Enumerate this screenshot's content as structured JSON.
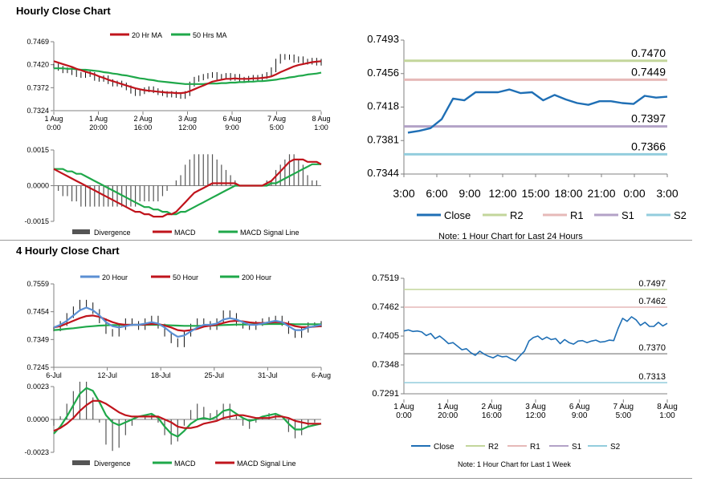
{
  "sections": [
    {
      "title": "Hourly Close Chart"
    },
    {
      "title": "4 Hourly Close Chart"
    }
  ],
  "colors": {
    "ma_red": "#c0141c",
    "ma_green": "#1fa84a",
    "hist": "#555555",
    "close": "#1f6fb5",
    "r2": "#c3d69b",
    "r1": "#e6b9b8",
    "s1": "#b3a2c7",
    "s2": "#93cddd",
    "axis": "#808080"
  },
  "chart_data": [
    {
      "id": "hourly_price_ma",
      "type": "line",
      "legend": [
        "20 Hr MA",
        "50 Hrs MA"
      ],
      "legend_placement": "top",
      "ylim": [
        0.7324,
        0.7469
      ],
      "yticks": [
        "0.7469",
        "0.7420",
        "0.7372",
        "0.7324"
      ],
      "xticks": [
        [
          "1 Aug",
          "0:00"
        ],
        [
          "1 Aug",
          "20:00"
        ],
        [
          "2 Aug",
          "16:00"
        ],
        [
          "3 Aug",
          "12:00"
        ],
        [
          "6 Aug",
          "9:00"
        ],
        [
          "7 Aug",
          "5:00"
        ],
        [
          "8 Aug",
          "1:00"
        ]
      ],
      "close": [
        0.7418,
        0.7413,
        0.7408,
        0.741,
        0.7404,
        0.74,
        0.7398,
        0.7402,
        0.74,
        0.7392,
        0.739,
        0.7393,
        0.7385,
        0.738,
        0.7382,
        0.7378,
        0.7372,
        0.7365,
        0.736,
        0.7364,
        0.7368,
        0.737,
        0.7366,
        0.7362,
        0.736,
        0.7357,
        0.736,
        0.7356,
        0.7354,
        0.736,
        0.738,
        0.739,
        0.7393,
        0.7396,
        0.7398,
        0.74,
        0.7394,
        0.7396,
        0.7398,
        0.7392,
        0.7396,
        0.739,
        0.7388,
        0.7392,
        0.7394,
        0.7392,
        0.7396,
        0.74,
        0.741,
        0.7428,
        0.7438,
        0.7436,
        0.7437,
        0.743,
        0.7433,
        0.7428,
        0.7426,
        0.743,
        0.7424,
        0.7428
      ],
      "series": [
        {
          "name": "20 Hr MA",
          "values": [
            0.7428,
            0.7425,
            0.7422,
            0.7419,
            0.7416,
            0.7412,
            0.7409,
            0.7406,
            0.7403,
            0.74,
            0.7396,
            0.7393,
            0.7389,
            0.7386,
            0.7383,
            0.738,
            0.7377,
            0.7374,
            0.7371,
            0.7369,
            0.7367,
            0.7366,
            0.7365,
            0.7364,
            0.7363,
            0.7362,
            0.7362,
            0.7361,
            0.7361,
            0.7362,
            0.7365,
            0.7369,
            0.7373,
            0.7377,
            0.7381,
            0.7385,
            0.7387,
            0.7389,
            0.7391,
            0.7391,
            0.7392,
            0.7391,
            0.7391,
            0.7391,
            0.7392,
            0.7392,
            0.7393,
            0.7394,
            0.7396,
            0.74,
            0.7405,
            0.7409,
            0.7413,
            0.7417,
            0.742,
            0.7422,
            0.7424,
            0.7426,
            0.7427,
            0.7428
          ]
        },
        {
          "name": "50 Hrs MA",
          "values": [
            0.7413,
            0.7413,
            0.7413,
            0.7412,
            0.7412,
            0.7411,
            0.741,
            0.741,
            0.7409,
            0.7408,
            0.7407,
            0.7405,
            0.7404,
            0.7402,
            0.7401,
            0.7399,
            0.7398,
            0.7396,
            0.7394,
            0.7392,
            0.7391,
            0.7389,
            0.7388,
            0.7386,
            0.7385,
            0.7384,
            0.7383,
            0.7382,
            0.7381,
            0.738,
            0.738,
            0.738,
            0.738,
            0.738,
            0.7381,
            0.7381,
            0.7381,
            0.7382,
            0.7382,
            0.7383,
            0.7383,
            0.7384,
            0.7384,
            0.7385,
            0.7385,
            0.7386,
            0.7386,
            0.7387,
            0.7388,
            0.7389,
            0.7391,
            0.7392,
            0.7394,
            0.7395,
            0.7397,
            0.7398,
            0.74,
            0.7401,
            0.7402,
            0.7404
          ]
        }
      ]
    },
    {
      "id": "hourly_macd",
      "type": "line",
      "legend": [
        "Divergence",
        "MACD",
        "MACD Signal Line"
      ],
      "legend_placement": "bottom",
      "ylim": [
        -0.0015,
        0.0015
      ],
      "yticks": [
        "0.0015",
        "0.0000",
        "-0.0015"
      ],
      "series": [
        {
          "name": "MACD",
          "values": [
            0.0007,
            0.0006,
            0.0005,
            0.0004,
            0.0003,
            0.0002,
            0.0001,
            0.0,
            -0.0001,
            -0.0002,
            -0.0003,
            -0.0004,
            -0.0005,
            -0.0006,
            -0.0007,
            -0.0008,
            -0.0009,
            -0.001,
            -0.0011,
            -0.0011,
            -0.0012,
            -0.0012,
            -0.0013,
            -0.0013,
            -0.0013,
            -0.0012,
            -0.0012,
            -0.0011,
            -0.0009,
            -0.0007,
            -0.0005,
            -0.0003,
            -0.0002,
            -0.0001,
            0.0,
            0.0001,
            0.0001,
            0.0001,
            0.0001,
            0.0001,
            0.0001,
            0.0,
            0.0,
            0.0,
            0.0,
            0.0,
            0.0,
            0.0001,
            0.0002,
            0.0004,
            0.0006,
            0.0008,
            0.001,
            0.0011,
            0.0011,
            0.0011,
            0.001,
            0.001,
            0.001,
            0.0009
          ]
        },
        {
          "name": "MACD Signal Line",
          "values": [
            0.0007,
            0.0007,
            0.0007,
            0.0006,
            0.0006,
            0.0005,
            0.0005,
            0.0004,
            0.0003,
            0.0002,
            0.0001,
            0.0,
            -0.0001,
            -0.0002,
            -0.0003,
            -0.0004,
            -0.0005,
            -0.0006,
            -0.0007,
            -0.0008,
            -0.0009,
            -0.0009,
            -0.001,
            -0.001,
            -0.0011,
            -0.0011,
            -0.0012,
            -0.0012,
            -0.0011,
            -0.0011,
            -0.001,
            -0.0009,
            -0.0008,
            -0.0007,
            -0.0006,
            -0.0005,
            -0.0004,
            -0.0003,
            -0.0002,
            -0.0001,
            0.0,
            0.0,
            0.0,
            0.0,
            0.0,
            0.0,
            0.0,
            0.0,
            0.0001,
            0.0001,
            0.0002,
            0.0003,
            0.0004,
            0.0005,
            0.0006,
            0.0007,
            0.0008,
            0.0009,
            0.0009,
            0.0009
          ]
        }
      ]
    },
    {
      "id": "hourly_close_levels",
      "type": "line",
      "xticks": [
        "3:00",
        "6:00",
        "9:00",
        "12:00",
        "15:00",
        "18:00",
        "21:00",
        "0:00",
        "3:00"
      ],
      "ylim": [
        0.7344,
        0.7493
      ],
      "yticks": [
        "0.7493",
        "0.7456",
        "0.7418",
        "0.7381",
        "0.7344"
      ],
      "legend": [
        "Close",
        "R2",
        "R1",
        "S1",
        "S2"
      ],
      "legend_placement": "bottom",
      "note": "Note: 1 Hour Chart for Last 24 Hours",
      "levels": [
        {
          "name": "R2",
          "value": 0.747,
          "label": "0.7470"
        },
        {
          "name": "R1",
          "value": 0.7449,
          "label": "0.7449"
        },
        {
          "name": "S1",
          "value": 0.7397,
          "label": "0.7397"
        },
        {
          "name": "S2",
          "value": 0.7366,
          "label": "0.7366"
        }
      ],
      "close": [
        0.739,
        0.7392,
        0.7395,
        0.7405,
        0.7428,
        0.7426,
        0.7435,
        0.7435,
        0.7435,
        0.7438,
        0.7434,
        0.7435,
        0.7426,
        0.7432,
        0.7427,
        0.7423,
        0.7421,
        0.7425,
        0.7425,
        0.7423,
        0.7422,
        0.7431,
        0.7429,
        0.743
      ]
    },
    {
      "id": "4hourly_price_ma",
      "type": "line",
      "legend": [
        "20 Hour",
        "50 Hour",
        "200 Hour"
      ],
      "legend_placement": "top",
      "ylim": [
        0.7245,
        0.7559
      ],
      "yticks": [
        "0.7559",
        "0.7454",
        "0.7349",
        "0.7245"
      ],
      "xticks": [
        "6-Jul",
        "12-Jul",
        "18-Jul",
        "25-Jul",
        "31-Jul",
        "6-Aug"
      ],
      "close": [
        0.739,
        0.741,
        0.744,
        0.7465,
        0.749,
        0.748,
        0.7455,
        0.742,
        0.738,
        0.737,
        0.7395,
        0.742,
        0.741,
        0.7395,
        0.742,
        0.743,
        0.74,
        0.737,
        0.7345,
        0.733,
        0.737,
        0.74,
        0.742,
        0.741,
        0.7395,
        0.742,
        0.745,
        0.744,
        0.741,
        0.74,
        0.7395,
        0.741,
        0.742,
        0.7425,
        0.743,
        0.741,
        0.738,
        0.7365,
        0.7385,
        0.7405,
        0.7405,
        0.741
      ],
      "series": [
        {
          "name": "20 Hour",
          "values": [
            0.7395,
            0.7405,
            0.742,
            0.744,
            0.746,
            0.747,
            0.746,
            0.744,
            0.7415,
            0.74,
            0.7395,
            0.74,
            0.7405,
            0.7405,
            0.741,
            0.7415,
            0.741,
            0.7395,
            0.7375,
            0.736,
            0.7365,
            0.738,
            0.7395,
            0.7405,
            0.7405,
            0.741,
            0.7425,
            0.743,
            0.7425,
            0.7415,
            0.7405,
            0.7405,
            0.741,
            0.7415,
            0.742,
            0.7415,
            0.74,
            0.7385,
            0.7385,
            0.7395,
            0.74,
            0.7405
          ]
        },
        {
          "name": "50 Hour",
          "values": [
            0.7395,
            0.74,
            0.741,
            0.742,
            0.743,
            0.7438,
            0.744,
            0.7435,
            0.7425,
            0.7415,
            0.7408,
            0.7405,
            0.7405,
            0.7405,
            0.7406,
            0.7408,
            0.7408,
            0.7402,
            0.7395,
            0.7385,
            0.7382,
            0.7385,
            0.739,
            0.7398,
            0.7402,
            0.7405,
            0.7412,
            0.7418,
            0.742,
            0.7418,
            0.7414,
            0.7412,
            0.7412,
            0.7413,
            0.7415,
            0.7414,
            0.7408,
            0.74,
            0.7396,
            0.7396,
            0.7398,
            0.74
          ]
        },
        {
          "name": "200 Hour",
          "values": [
            0.7385,
            0.7387,
            0.739,
            0.7392,
            0.7395,
            0.7398,
            0.74,
            0.7402,
            0.7403,
            0.7404,
            0.7404,
            0.7405,
            0.7405,
            0.7405,
            0.7405,
            0.7405,
            0.7405,
            0.7404,
            0.7403,
            0.7402,
            0.7401,
            0.7401,
            0.7401,
            0.7402,
            0.7402,
            0.7403,
            0.7404,
            0.7405,
            0.7406,
            0.7406,
            0.7406,
            0.7407,
            0.7407,
            0.7408,
            0.7408,
            0.7408,
            0.7408,
            0.7407,
            0.7407,
            0.7407,
            0.7407,
            0.7407
          ]
        }
      ]
    },
    {
      "id": "4hourly_macd",
      "type": "line",
      "legend": [
        "Divergence",
        "MACD",
        "MACD Signal Line"
      ],
      "legend_placement": "bottom",
      "ylim": [
        -0.0023,
        0.0023
      ],
      "yticks": [
        "0.0023",
        "0.0000",
        "-0.0023"
      ],
      "series": [
        {
          "name": "MACD",
          "values": [
            -0.001,
            -0.0005,
            0.0002,
            0.001,
            0.0018,
            0.0022,
            0.002,
            0.0012,
            0.0003,
            -0.0002,
            -0.0004,
            -0.0002,
            0.0,
            0.0002,
            0.0003,
            0.0004,
            0.0001,
            -0.0005,
            -0.001,
            -0.0012,
            -0.0008,
            -0.0003,
            0.0,
            0.0001,
            0.0,
            0.0002,
            0.0006,
            0.0007,
            0.0004,
            0.0001,
            -0.0001,
            0.0,
            0.0002,
            0.0003,
            0.0004,
            0.0002,
            -0.0003,
            -0.0007,
            -0.0007,
            -0.0005,
            -0.0004,
            -0.0003
          ]
        },
        {
          "name": "MACD Signal Line",
          "values": [
            -0.0008,
            -0.0006,
            -0.0003,
            0.0001,
            0.0006,
            0.001,
            0.0013,
            0.0013,
            0.0011,
            0.0008,
            0.0005,
            0.0003,
            0.0002,
            0.0002,
            0.0002,
            0.0002,
            0.0002,
            0.0,
            -0.0002,
            -0.0005,
            -0.0006,
            -0.0006,
            -0.0005,
            -0.0003,
            -0.0002,
            -0.0001,
            0.0001,
            0.0002,
            0.0003,
            0.0003,
            0.0002,
            0.0001,
            0.0001,
            0.0001,
            0.0002,
            0.0002,
            0.0001,
            -0.0001,
            -0.0002,
            -0.0003,
            -0.0003,
            -0.0003
          ]
        }
      ]
    },
    {
      "id": "weekly_close_levels",
      "type": "line",
      "xticks": [
        [
          "1 Aug",
          "0:00"
        ],
        [
          "1 Aug",
          "20:00"
        ],
        [
          "2 Aug",
          "16:00"
        ],
        [
          "3 Aug",
          "12:00"
        ],
        [
          "6 Aug",
          "9:00"
        ],
        [
          "7 Aug",
          "5:00"
        ],
        [
          "8 Aug",
          "1:00"
        ]
      ],
      "ylim": [
        0.7291,
        0.7519
      ],
      "yticks": [
        "0.7519",
        "0.7462",
        "0.7405",
        "0.7348",
        "0.7291"
      ],
      "legend": [
        "Close",
        "R2",
        "R1",
        "S1",
        "S2"
      ],
      "legend_placement": "bottom",
      "note": "Note: 1 Hour Chart for Last 1 Week",
      "levels": [
        {
          "name": "R2",
          "value": 0.7497,
          "label": "0.7497"
        },
        {
          "name": "R1",
          "value": 0.7462,
          "label": "0.7462"
        },
        {
          "name": "S1",
          "value": 0.737,
          "label": "0.7370"
        },
        {
          "name": "S2",
          "value": 0.7313,
          "label": "0.7313"
        }
      ],
      "close": [
        0.7415,
        0.7417,
        0.7414,
        0.7415,
        0.7413,
        0.7406,
        0.741,
        0.74,
        0.7405,
        0.7398,
        0.739,
        0.7392,
        0.7385,
        0.7378,
        0.738,
        0.7372,
        0.7367,
        0.7375,
        0.7369,
        0.7365,
        0.7362,
        0.7367,
        0.7364,
        0.7365,
        0.736,
        0.7356,
        0.7366,
        0.7375,
        0.7395,
        0.7402,
        0.7405,
        0.7398,
        0.7403,
        0.7398,
        0.74,
        0.739,
        0.7398,
        0.7392,
        0.7389,
        0.7395,
        0.7396,
        0.7392,
        0.7395,
        0.7397,
        0.7393,
        0.7394,
        0.7397,
        0.7396,
        0.742,
        0.744,
        0.7434,
        0.7443,
        0.7437,
        0.7426,
        0.7432,
        0.7424,
        0.7424,
        0.7432,
        0.7425,
        0.743
      ]
    }
  ]
}
